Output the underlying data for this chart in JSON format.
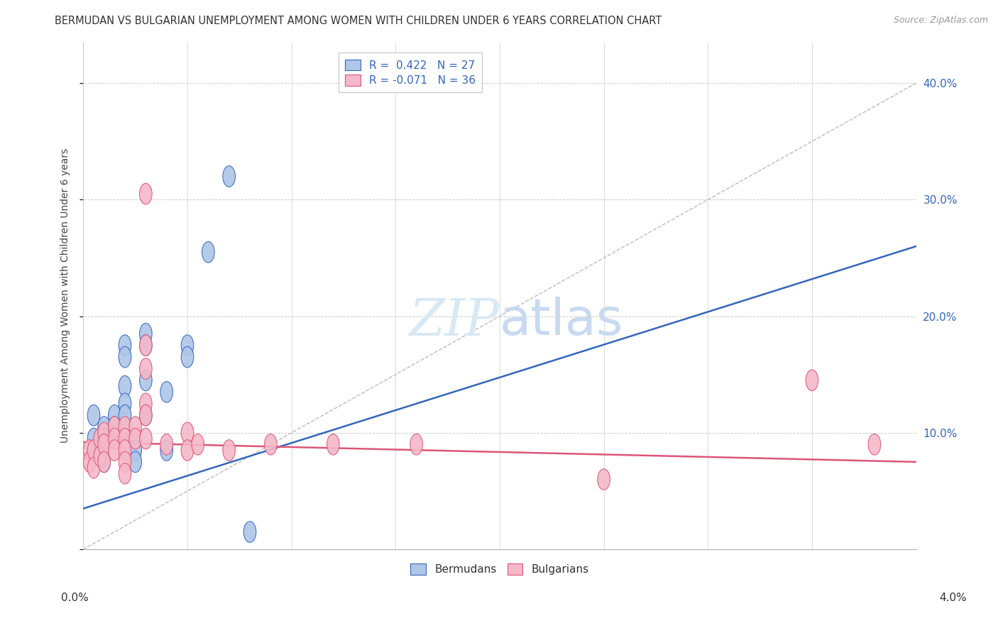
{
  "title": "BERMUDAN VS BULGARIAN UNEMPLOYMENT AMONG WOMEN WITH CHILDREN UNDER 6 YEARS CORRELATION CHART",
  "source": "Source: ZipAtlas.com",
  "ylabel": "Unemployment Among Women with Children Under 6 years",
  "legend_r_bermuda": "R =  0.422",
  "legend_n_bermuda": "N = 27",
  "legend_r_bulgaria": "R = -0.071",
  "legend_n_bulgaria": "N = 36",
  "legend_label_bermuda": "Bermudans",
  "legend_label_bulgaria": "Bulgarians",
  "bermuda_color": "#aec6e8",
  "bulgaria_color": "#f5b8c8",
  "trend_bermuda_color": "#3366bb",
  "trend_bulgaria_color": "#dd5577",
  "diagonal_color": "#bbbbbb",
  "xlim": [
    0.0,
    0.04
  ],
  "ylim": [
    0.0,
    0.42
  ],
  "yticks": [
    0.0,
    0.1,
    0.2,
    0.3,
    0.4
  ],
  "ytick_labels": [
    "",
    "10.0%",
    "20.0%",
    "30.0%",
    "40.0%"
  ],
  "xtick_positions": [
    0.0,
    0.005,
    0.01,
    0.015,
    0.02,
    0.025,
    0.03,
    0.035,
    0.04
  ],
  "bermuda_x": [
    0.0005,
    0.0005,
    0.001,
    0.001,
    0.001,
    0.0015,
    0.0015,
    0.0015,
    0.002,
    0.002,
    0.002,
    0.002,
    0.002,
    0.002,
    0.0025,
    0.0025,
    0.003,
    0.003,
    0.003,
    0.003,
    0.004,
    0.004,
    0.005,
    0.005,
    0.006,
    0.007,
    0.008
  ],
  "bermuda_y": [
    0.115,
    0.095,
    0.105,
    0.095,
    0.075,
    0.115,
    0.105,
    0.095,
    0.175,
    0.165,
    0.14,
    0.125,
    0.115,
    0.095,
    0.085,
    0.075,
    0.185,
    0.175,
    0.145,
    0.115,
    0.135,
    0.085,
    0.175,
    0.165,
    0.255,
    0.32,
    0.015
  ],
  "bulgaria_x": [
    0.0003,
    0.0003,
    0.0005,
    0.0005,
    0.0008,
    0.0008,
    0.001,
    0.001,
    0.001,
    0.0015,
    0.0015,
    0.0015,
    0.002,
    0.002,
    0.002,
    0.002,
    0.002,
    0.0025,
    0.0025,
    0.003,
    0.003,
    0.003,
    0.003,
    0.003,
    0.003,
    0.004,
    0.005,
    0.005,
    0.0055,
    0.007,
    0.009,
    0.012,
    0.016,
    0.025,
    0.035,
    0.038
  ],
  "bulgaria_y": [
    0.085,
    0.075,
    0.085,
    0.07,
    0.095,
    0.08,
    0.1,
    0.09,
    0.075,
    0.105,
    0.095,
    0.085,
    0.105,
    0.095,
    0.085,
    0.075,
    0.065,
    0.105,
    0.095,
    0.305,
    0.175,
    0.155,
    0.125,
    0.115,
    0.095,
    0.09,
    0.1,
    0.085,
    0.09,
    0.085,
    0.09,
    0.09,
    0.09,
    0.06,
    0.145,
    0.09
  ],
  "bermuda_trend": [
    0.0,
    0.04,
    0.035,
    0.26
  ],
  "bulgaria_trend": [
    0.0,
    0.04,
    0.092,
    0.075
  ],
  "diagonal_trend": [
    0.0,
    0.04,
    0.0,
    0.4
  ],
  "watermark": "ZIPatlas",
  "watermark_color": "#d8e8f5"
}
